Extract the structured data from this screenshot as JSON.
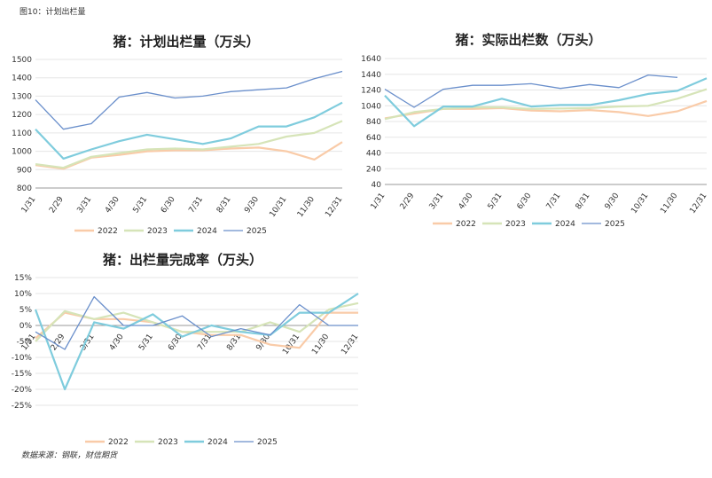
{
  "figure_label": "图10：计划出栏量",
  "source_note": "数据来源：钢联，财信期货",
  "colors": {
    "2022": "#F9CBA8",
    "2023": "#D6E4B8",
    "2024": "#7FCCDD",
    "2025": "#6A8FCB"
  },
  "chart_data": [
    {
      "type": "line",
      "title": "猪：计划出栏量（万头）",
      "categories": [
        "1/31",
        "2/29",
        "3/31",
        "4/30",
        "5/31",
        "6/30",
        "7/31",
        "8/31",
        "9/30",
        "10/31",
        "11/30",
        "12/31"
      ],
      "ylim": [
        800,
        1500
      ],
      "yticks": [
        800,
        900,
        1000,
        1100,
        1200,
        1300,
        1400,
        1500
      ],
      "series": [
        {
          "name": "2022",
          "values": [
            925,
            905,
            965,
            980,
            1000,
            1005,
            1005,
            1015,
            1020,
            1000,
            955,
            1050
          ]
        },
        {
          "name": "2023",
          "values": [
            930,
            910,
            970,
            990,
            1010,
            1015,
            1010,
            1025,
            1040,
            1080,
            1100,
            1165
          ]
        },
        {
          "name": "2024",
          "values": [
            1120,
            960,
            1010,
            1055,
            1090,
            1065,
            1040,
            1070,
            1135,
            1135,
            1185,
            1265
          ]
        },
        {
          "name": "2025",
          "values": [
            1280,
            1120,
            1150,
            1295,
            1320,
            1290,
            1300,
            1325,
            1335,
            1345,
            1395,
            1435
          ]
        }
      ]
    },
    {
      "type": "line",
      "title": "猪：实际出栏数（万头）",
      "categories": [
        "1/31",
        "2/29",
        "3/31",
        "4/30",
        "5/31",
        "6/30",
        "7/31",
        "8/31",
        "9/30",
        "10/31",
        "11/30",
        "12/31"
      ],
      "ylim": [
        40,
        1640
      ],
      "yticks": [
        40,
        240,
        440,
        640,
        840,
        1040,
        1240,
        1440,
        1640
      ],
      "series": [
        {
          "name": "2022",
          "values": [
            880,
            940,
            1000,
            1000,
            1010,
            980,
            970,
            985,
            960,
            910,
            970,
            1100
          ]
        },
        {
          "name": "2023",
          "values": [
            870,
            960,
            1000,
            1020,
            1020,
            1000,
            1005,
            1010,
            1030,
            1040,
            1130,
            1250
          ]
        },
        {
          "name": "2024",
          "values": [
            1170,
            780,
            1030,
            1030,
            1130,
            1030,
            1050,
            1050,
            1110,
            1190,
            1230,
            1390
          ]
        },
        {
          "name": "2025",
          "values": [
            1250,
            1020,
            1250,
            1300,
            1300,
            1320,
            1260,
            1310,
            1270,
            1430,
            1400,
            null
          ]
        }
      ]
    },
    {
      "type": "line",
      "title": "猪：出栏量完成率（万头）",
      "categories": [
        "1/31",
        "2/29",
        "3/31",
        "4/30",
        "5/31",
        "6/30",
        "7/31",
        "8/31",
        "9/30",
        "10/31",
        "11/30",
        "12/31"
      ],
      "ylim": [
        -25,
        15
      ],
      "yticks": [
        -25,
        -20,
        -15,
        -10,
        -5,
        0,
        5,
        10,
        15
      ],
      "ytick_suffix": "%",
      "series": [
        {
          "name": "2022",
          "values": [
            -4,
            4,
            2,
            2,
            1,
            -2,
            -3,
            -3,
            -6,
            -7,
            4,
            4
          ]
        },
        {
          "name": "2023",
          "values": [
            -5,
            4.5,
            2,
            4,
            1,
            -2,
            -2,
            -2,
            1,
            -2,
            5,
            7
          ]
        },
        {
          "name": "2024",
          "values": [
            5,
            -20,
            1,
            -1,
            3.5,
            -3.5,
            0,
            -2,
            -3,
            4,
            4,
            10
          ]
        },
        {
          "name": "2025",
          "values": [
            -2,
            -7.5,
            9,
            0,
            0,
            3,
            -3.5,
            -1,
            -3,
            6.5,
            0,
            0
          ]
        }
      ]
    }
  ]
}
